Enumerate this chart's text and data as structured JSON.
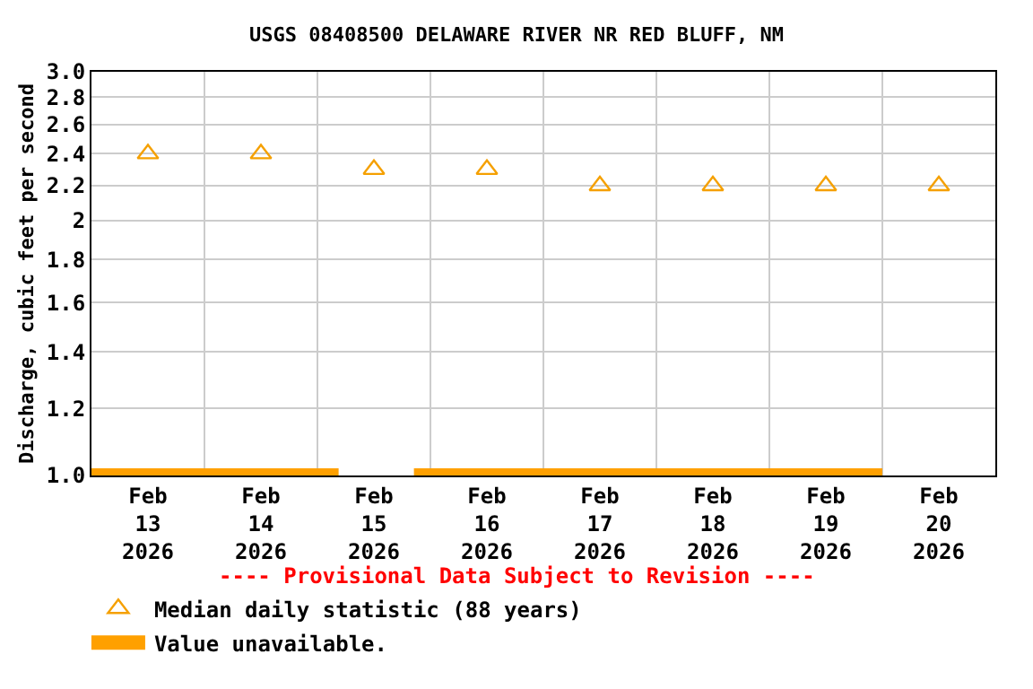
{
  "chart_data": {
    "type": "scatter",
    "title": "USGS 08408500 DELAWARE RIVER NR RED BLUFF, NM",
    "ylabel": "Discharge, cubic feet per second",
    "x": [
      "2026-02-13T12:00",
      "2026-02-14T12:00",
      "2026-02-15T12:00",
      "2026-02-16T12:00",
      "2026-02-17T12:00",
      "2026-02-18T12:00",
      "2026-02-19T12:00",
      "2026-02-20T12:00"
    ],
    "series": [
      {
        "name": "Median daily statistic (88 years)",
        "color": "#f5a000",
        "marker": "triangle",
        "values": [
          2.4,
          2.4,
          2.3,
          2.3,
          2.2,
          2.2,
          2.2,
          2.2
        ]
      },
      {
        "type": "line",
        "name": "Value unavailable.",
        "color": "#ffa000",
        "x": [
          "2026-02-13T00:00",
          "2026-02-15T04:30",
          "2026-02-15T12:00",
          "2026-02-15T20:30",
          "2026-02-20T00:00"
        ],
        "values": [
          1.0,
          1.0,
          null,
          1.0,
          1.0
        ]
      }
    ],
    "log": true,
    "xlim": [
      "2026-02-13",
      "2026-02-21"
    ],
    "xticks": [
      {
        "value": "2026-02-13T12:00",
        "label": "Feb\n13\n2026"
      },
      {
        "value": "2026-02-14T12:00",
        "label": "Feb\n14\n2026"
      },
      {
        "value": "2026-02-15T12:00",
        "label": "Feb\n15\n2026"
      },
      {
        "value": "2026-02-16T12:00",
        "label": "Feb\n16\n2026"
      },
      {
        "value": "2026-02-17T12:00",
        "label": "Feb\n17\n2026"
      },
      {
        "value": "2026-02-18T12:00",
        "label": "Feb\n18\n2026"
      },
      {
        "value": "2026-02-19T12:00",
        "label": "Feb\n19\n2026"
      },
      {
        "value": "2026-02-20T12:00",
        "label": "Feb\n20\n2026"
      }
    ],
    "ylim": [
      1.0,
      3.0
    ],
    "yticks": [
      {
        "value": 1.0,
        "label": "1.0"
      },
      1.2,
      1.4,
      1.6,
      1.8,
      2,
      2.2,
      2.4,
      2.6,
      2.8,
      {
        "value": 3.0,
        "label": "3.0"
      }
    ],
    "annotations": [
      "---- Provisional Data Subject to Revision ----"
    ],
    "grid": true,
    "legend": "bottom left"
  }
}
